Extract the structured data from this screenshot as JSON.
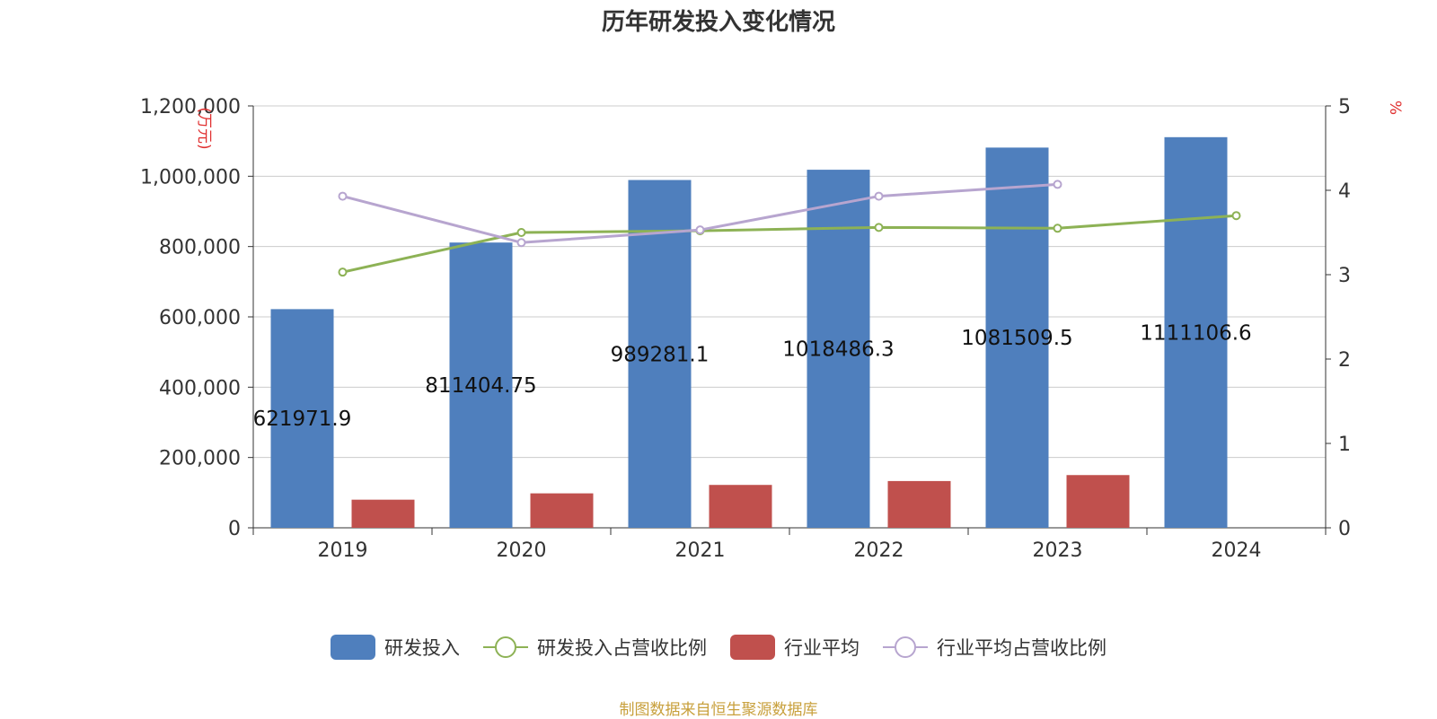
{
  "chart_data": {
    "type": "bar",
    "title": "历年研发投入变化情况",
    "categories": [
      "2019",
      "2020",
      "2021",
      "2022",
      "2023",
      "2024"
    ],
    "y_left": {
      "label": "(万元)",
      "min": 0,
      "max": 1200000,
      "ticks": [
        "0",
        "200,000",
        "400,000",
        "600,000",
        "800,000",
        "1,000,000",
        "1,200,000"
      ]
    },
    "y_right": {
      "label": "%",
      "min": 0,
      "max": 5,
      "ticks": [
        "0",
        "1",
        "2",
        "3",
        "4",
        "5"
      ]
    },
    "series": [
      {
        "name": "研发投入",
        "type": "bar",
        "axis": "left",
        "color": "#4f7fbd",
        "values": [
          621971.9,
          811404.75,
          989281.1,
          1018486.3,
          1081509.5,
          1111106.6
        ],
        "labels": [
          "621971.9",
          "811404.75",
          "989281.1",
          "1018486.3",
          "1081509.5",
          "1111106.6"
        ]
      },
      {
        "name": "研发投入占营收比例",
        "type": "line",
        "axis": "right",
        "color": "#8db255",
        "values": [
          3.03,
          3.5,
          3.52,
          3.56,
          3.55,
          3.7
        ]
      },
      {
        "name": "行业平均",
        "type": "bar",
        "axis": "left",
        "color": "#c0504d",
        "values": [
          80000,
          98000,
          122000,
          133000,
          150000,
          null
        ]
      },
      {
        "name": "行业平均占营收比例",
        "type": "line",
        "axis": "right",
        "color": "#b7a5cf",
        "values": [
          3.93,
          3.38,
          3.53,
          3.93,
          4.07,
          null
        ]
      }
    ],
    "legend_position": "bottom",
    "grid": true,
    "source": "制图数据来自恒生聚源数据库"
  }
}
